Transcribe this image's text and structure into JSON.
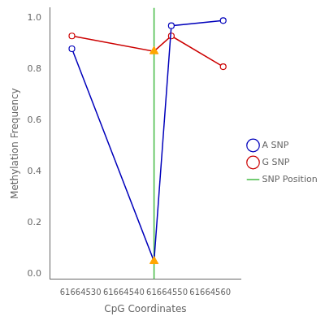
{
  "chart_data": {
    "type": "line",
    "xlabel": "CpG Coordinates",
    "ylabel": "Methylation Frequency",
    "xlim": [
      61664523,
      61664567
    ],
    "ylim": [
      -0.02,
      1.04
    ],
    "xticks": [
      61664530,
      61664540,
      61664550,
      61664560
    ],
    "yticks": [
      {
        "value": 0.0,
        "label": "0.0"
      },
      0.2,
      0.4,
      0.6,
      0.8,
      {
        "value": 1.0,
        "label": "1.0"
      }
    ],
    "grid": false,
    "legend": "right",
    "series": [
      {
        "name": "A SNP",
        "color": "#0000bb",
        "marker": "circle",
        "x": [
          61664528,
          61664547,
          61664551,
          61664563
        ],
        "values": [
          0.88,
          0.05,
          0.97,
          0.99
        ]
      },
      {
        "name": "G SNP",
        "color": "#cc0000",
        "marker": "circle",
        "x": [
          61664528,
          61664547,
          61664551,
          61664563
        ],
        "values": [
          0.93,
          0.87,
          0.93,
          0.81
        ]
      },
      {
        "name": "SNP Position",
        "type": "vline",
        "color": "#44bb44",
        "x": [
          61664547
        ]
      },
      {
        "type": "scatter",
        "marker": "triangle",
        "color": "#FFA500",
        "x": [
          61664547,
          61664547
        ],
        "values": [
          0.05,
          0.87
        ]
      }
    ]
  }
}
